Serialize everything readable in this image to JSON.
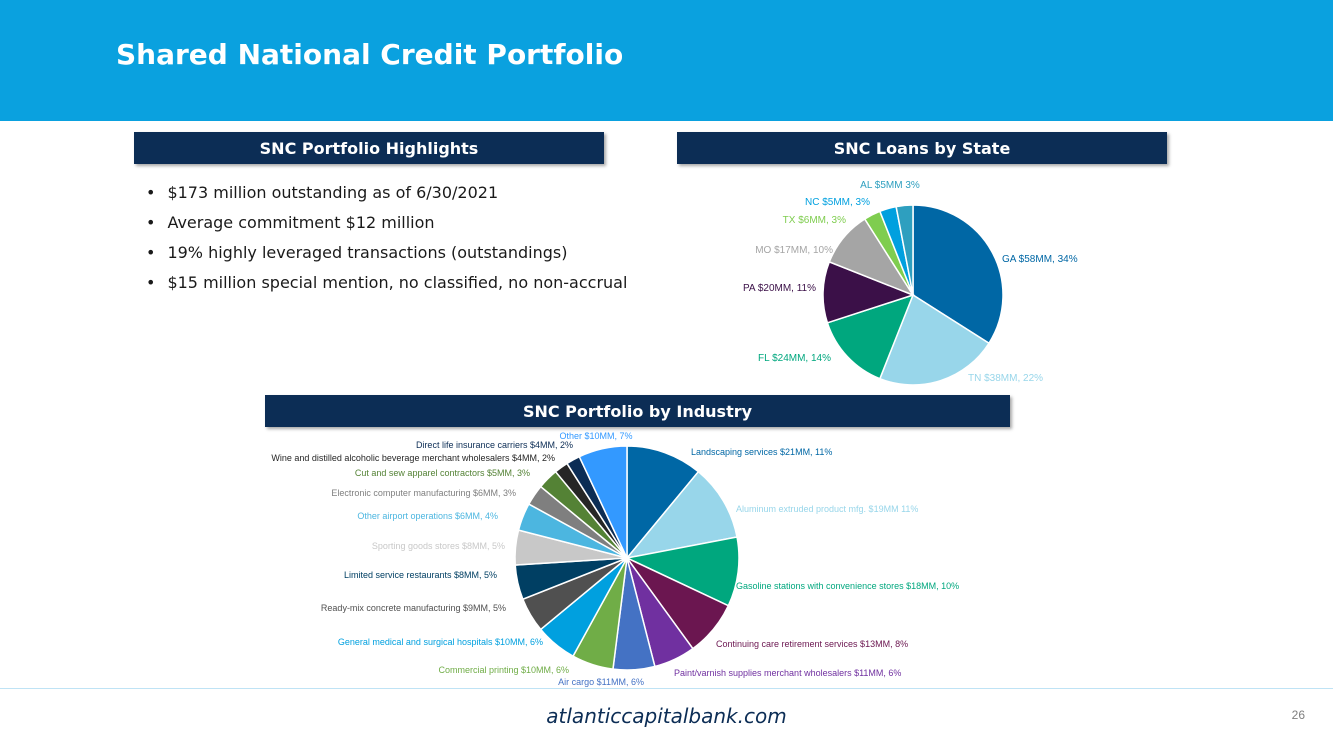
{
  "title": "Shared National Credit Portfolio",
  "highlights": {
    "header": "SNC Portfolio Highlights",
    "items": [
      "$173 million outstanding as of 6/30/2021",
      "Average commitment $12 million",
      "19% highly leveraged transactions (outstandings)",
      "$15 million special mention, no classified, no non-accrual"
    ]
  },
  "state_header": "SNC Loans by State",
  "industry_header": "SNC Portfolio by Industry",
  "footer": {
    "url": "atlanticcapitalbank.com",
    "page": "26"
  },
  "chart_data": [
    {
      "type": "pie",
      "slices": [
        {
          "label": "GA $58MM, 34%",
          "value": 34,
          "color": "#0067a5"
        },
        {
          "label": "TN $38MM, 22%",
          "value": 22,
          "color": "#98d6ea"
        },
        {
          "label": "FL $24MM, 14%",
          "value": 14,
          "color": "#00a77e"
        },
        {
          "label": "PA $20MM, 11%",
          "value": 11,
          "color": "#3b1048"
        },
        {
          "label": "MO $17MM, 10%",
          "value": 10,
          "color": "#a5a5a5"
        },
        {
          "label": "TX $6MM, 3%",
          "value": 3,
          "color": "#7fcd4f"
        },
        {
          "label": "NC $5MM, 3%",
          "value": 3,
          "color": "#00a0df"
        },
        {
          "label": "AL $5MM 3%",
          "value": 3,
          "color": "#2e9fbf"
        }
      ]
    },
    {
      "type": "pie",
      "slices": [
        {
          "label": "Landscaping services $21MM, 11%",
          "value": 11,
          "color": "#0067a5"
        },
        {
          "label": "Aluminum extruded product mfg. $19MM 11%",
          "value": 11,
          "color": "#98d6ea"
        },
        {
          "label": "Gasoline stations with convenience stores $18MM, 10%",
          "value": 10,
          "color": "#00a77e"
        },
        {
          "label": "Continuing care retirement services $13MM, 8%",
          "value": 8,
          "color": "#6b1650"
        },
        {
          "label": "Paint/varnish supplies merchant wholesalers $11MM, 6%",
          "value": 6,
          "color": "#7030a0"
        },
        {
          "label": "Air cargo $11MM, 6%",
          "value": 6,
          "color": "#4472c4"
        },
        {
          "label": "Commercial printing $10MM, 6%",
          "value": 6,
          "color": "#70ad47"
        },
        {
          "label": "General medical and surgical hospitals $10MM, 6%",
          "value": 6,
          "color": "#00a0df"
        },
        {
          "label": "Ready-mix concrete manufacturing $9MM, 5%",
          "value": 5,
          "color": "#505050"
        },
        {
          "label": "Limited service restaurants $8MM, 5%",
          "value": 5,
          "color": "#003f63"
        },
        {
          "label": "Sporting goods stores $8MM, 5%",
          "value": 5,
          "color": "#c8c8c8"
        },
        {
          "label": "Other airport operations $6MM, 4%",
          "value": 4,
          "color": "#4cb6e0"
        },
        {
          "label": "Electronic computer manufacturing $6MM, 3%",
          "value": 3,
          "color": "#7f7f7f"
        },
        {
          "label": "Cut and sew apparel contractors $5MM, 3%",
          "value": 3,
          "color": "#548235"
        },
        {
          "label": "Wine and distilled alcoholic beverage merchant wholesalers $4MM, 2%",
          "value": 2,
          "color": "#262626"
        },
        {
          "label": "Direct life insurance carriers $4MM, 2%",
          "value": 2,
          "color": "#0c2d55"
        },
        {
          "label": "Other $10MM, 7%",
          "value": 7,
          "color": "#3399ff"
        }
      ]
    }
  ]
}
